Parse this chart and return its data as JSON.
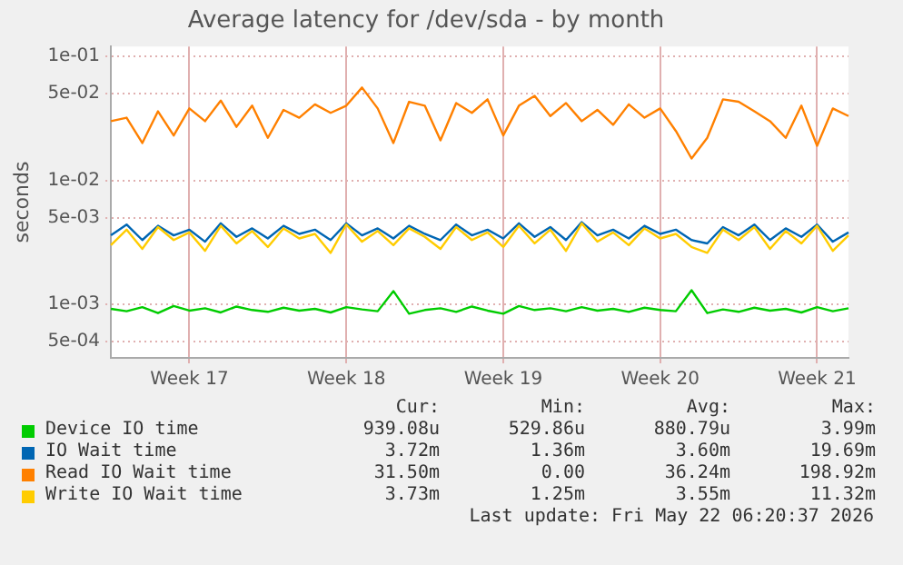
{
  "chart_data": {
    "type": "line",
    "title": "Average latency for /dev/sda - by month",
    "ylabel": "seconds",
    "log": true,
    "grid": true,
    "legend": "bottom",
    "marker": "none",
    "line_style": "solid",
    "categories": [
      null,
      null,
      null,
      null,
      null,
      "Week 17",
      null,
      null,
      null,
      null,
      null,
      null,
      null,
      null,
      null,
      "Week 18",
      null,
      null,
      null,
      null,
      null,
      null,
      null,
      null,
      null,
      "Week 19",
      null,
      null,
      null,
      null,
      null,
      null,
      null,
      null,
      null,
      "Week 20",
      null,
      null,
      null,
      null,
      null,
      null,
      null,
      null,
      null,
      "Week 21",
      null,
      null
    ],
    "ylim": [
      0.00037,
      0.12
    ],
    "yticks": [
      {
        "value": 0.0005,
        "label": "5e-04"
      },
      {
        "value": 0.001,
        "label": "1e-03"
      },
      {
        "value": 0.005,
        "label": "5e-03"
      },
      {
        "value": 0.01,
        "label": "1e-02"
      },
      {
        "value": 0.05,
        "label": "5e-02"
      },
      {
        "value": 0.1,
        "label": "1e-01"
      }
    ],
    "series": [
      {
        "name": "Device IO time",
        "color": "#00cc00",
        "values": [
          0.00092,
          0.00088,
          0.00095,
          0.00085,
          0.00097,
          0.00089,
          0.00093,
          0.00086,
          0.00096,
          0.0009,
          0.00087,
          0.00094,
          0.00089,
          0.00092,
          0.00086,
          0.00095,
          0.00091,
          0.00088,
          0.00128,
          0.00084,
          0.0009,
          0.00093,
          0.00087,
          0.00096,
          0.00089,
          0.00084,
          0.00097,
          0.0009,
          0.00093,
          0.00088,
          0.00095,
          0.00089,
          0.00092,
          0.00087,
          0.00094,
          0.0009,
          0.00088,
          0.0013,
          0.00085,
          0.00091,
          0.00087,
          0.00094,
          0.00089,
          0.00092,
          0.00086,
          0.00095,
          0.00088,
          0.00093
        ]
      },
      {
        "name": "IO Wait time",
        "color": "#0066b3",
        "values": [
          0.0036,
          0.0044,
          0.0033,
          0.0043,
          0.0036,
          0.004,
          0.0032,
          0.0045,
          0.0035,
          0.0041,
          0.0034,
          0.0043,
          0.0037,
          0.004,
          0.0033,
          0.0045,
          0.0036,
          0.0041,
          0.0034,
          0.0043,
          0.0037,
          0.0033,
          0.0044,
          0.0036,
          0.004,
          0.0034,
          0.0045,
          0.0035,
          0.0042,
          0.0033,
          0.0046,
          0.0036,
          0.004,
          0.0034,
          0.0043,
          0.0037,
          0.004,
          0.0033,
          0.0031,
          0.0042,
          0.0036,
          0.0044,
          0.0033,
          0.0041,
          0.0035,
          0.0044,
          0.0032,
          0.0038
        ]
      },
      {
        "name": "Read IO Wait time",
        "color": "#ff8000",
        "values": [
          0.03,
          0.032,
          0.02,
          0.036,
          0.023,
          0.038,
          0.03,
          0.044,
          0.027,
          0.04,
          0.022,
          0.037,
          0.032,
          0.041,
          0.035,
          0.04,
          0.056,
          0.038,
          0.02,
          0.043,
          0.04,
          0.021,
          0.042,
          0.035,
          0.045,
          0.023,
          0.04,
          0.048,
          0.033,
          0.042,
          0.03,
          0.037,
          0.028,
          0.041,
          0.032,
          0.038,
          0.025,
          0.015,
          0.022,
          0.045,
          0.043,
          0.036,
          0.03,
          0.022,
          0.04,
          0.019,
          0.038,
          0.033
        ]
      },
      {
        "name": "Write IO Wait time",
        "color": "#ffcc00",
        "values": [
          0.003,
          0.004,
          0.0028,
          0.0042,
          0.0033,
          0.0038,
          0.0027,
          0.0043,
          0.0031,
          0.0039,
          0.0029,
          0.0041,
          0.0034,
          0.0037,
          0.0026,
          0.0044,
          0.0032,
          0.0039,
          0.003,
          0.0041,
          0.0035,
          0.0028,
          0.0042,
          0.0033,
          0.0038,
          0.0029,
          0.0043,
          0.0031,
          0.004,
          0.0027,
          0.0045,
          0.0032,
          0.0038,
          0.003,
          0.0041,
          0.0034,
          0.0037,
          0.0029,
          0.0026,
          0.004,
          0.0033,
          0.0042,
          0.0028,
          0.0039,
          0.0031,
          0.0043,
          0.0027,
          0.0036
        ]
      }
    ],
    "annotations": [
      "Cur:",
      "Min:",
      "Avg:",
      "Max:",
      "939.08u",
      "529.86u",
      "880.79u",
      "3.99m",
      "3.72m",
      "1.36m",
      "3.60m",
      "19.69m",
      "31.50m",
      "0.00",
      "36.24m",
      "198.92m",
      "3.73m",
      "1.25m",
      "3.55m",
      "11.32m",
      "Last update: Fri May 22 06:20:37 2026"
    ]
  }
}
